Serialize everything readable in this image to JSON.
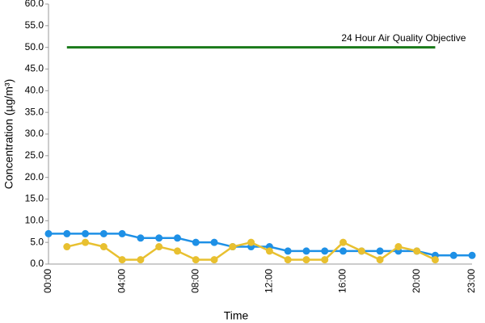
{
  "chart_data": {
    "type": "line",
    "x_label": "Time",
    "y_label": "Concentration (µg/m³)",
    "categories": [
      "00:00",
      null,
      null,
      null,
      "04:00",
      null,
      null,
      null,
      "08:00",
      null,
      null,
      null,
      "12:00",
      null,
      null,
      null,
      "16:00",
      null,
      null,
      null,
      "20:00",
      null,
      null,
      "23:00"
    ],
    "series": [
      {
        "color": "#1e90e6",
        "values": [
          7,
          7,
          7,
          7,
          7,
          6,
          6,
          6,
          5,
          5,
          4,
          4,
          4,
          3,
          3,
          3,
          3,
          3,
          3,
          3,
          3,
          2,
          2,
          2
        ]
      },
      {
        "color": "#e8c030",
        "values": [
          null,
          4,
          5,
          4,
          1,
          1,
          4,
          3,
          1,
          1,
          4,
          5,
          3,
          1,
          1,
          1,
          5,
          3,
          1,
          4,
          3,
          1,
          null,
          null
        ]
      },
      {
        "name": "24 Hour Air Quality Objective",
        "color": "#1a7a1a",
        "values": [
          null,
          50,
          50,
          50,
          50,
          50,
          50,
          50,
          50,
          50,
          50,
          50,
          50,
          50,
          50,
          50,
          50,
          50,
          50,
          50,
          50,
          50,
          null,
          null
        ]
      }
    ],
    "ylim": [
      0,
      60
    ],
    "yticks": [
      {
        "value": 0,
        "label": "0.0"
      },
      {
        "value": 5,
        "label": "5.0"
      },
      {
        "value": 10,
        "label": "10.0"
      },
      {
        "value": 15,
        "label": "15.0"
      },
      {
        "value": 20,
        "label": "20.0"
      },
      {
        "value": 25,
        "label": "25.0"
      },
      {
        "value": 30,
        "label": "30.0"
      },
      {
        "value": 35,
        "label": "35.0"
      },
      {
        "value": 40,
        "label": "40.0"
      },
      {
        "value": 45,
        "label": "45.0"
      },
      {
        "value": 50,
        "label": "50.0"
      },
      {
        "value": 55,
        "label": "55.0"
      },
      {
        "value": 60,
        "label": "60.0"
      }
    ],
    "grid": false
  }
}
